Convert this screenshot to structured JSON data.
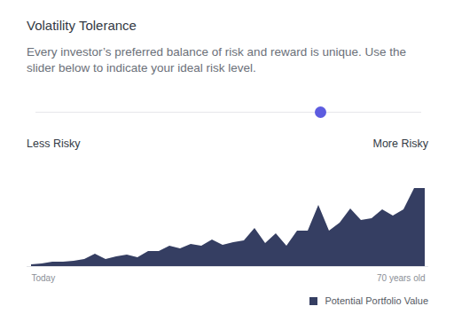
{
  "header": {
    "title": "Volatility Tolerance",
    "subtitle": "Every investor’s preferred balance of risk and reward is unique. Use the slider below to indicate your ideal risk level."
  },
  "slider": {
    "left_label": "Less Risky",
    "right_label": "More Risky",
    "value": 74,
    "range": [
      0,
      100
    ]
  },
  "chart_data": {
    "type": "area",
    "categories": [
      "Today",
      null,
      null,
      null,
      null,
      null,
      null,
      null,
      null,
      null,
      null,
      null,
      null,
      null,
      null,
      null,
      null,
      null,
      null,
      null,
      null,
      null,
      null,
      null,
      null,
      null,
      null,
      null,
      null,
      null,
      null,
      null,
      null,
      null,
      null,
      null,
      null,
      "70 years old"
    ],
    "series": [
      {
        "name": "Potential Portfolio Value",
        "color": "#353e62",
        "values": [
          2,
          3,
          5,
          5,
          6,
          8,
          14,
          8,
          11,
          13,
          10,
          17,
          17,
          23,
          20,
          25,
          23,
          30,
          24,
          27,
          29,
          43,
          26,
          37,
          23,
          40,
          40,
          69,
          40,
          49,
          65,
          52,
          54,
          64,
          57,
          64,
          88,
          88
        ]
      }
    ],
    "ylim": [
      0,
      100
    ],
    "tick_labels": "x",
    "legend": "bottom-right"
  }
}
